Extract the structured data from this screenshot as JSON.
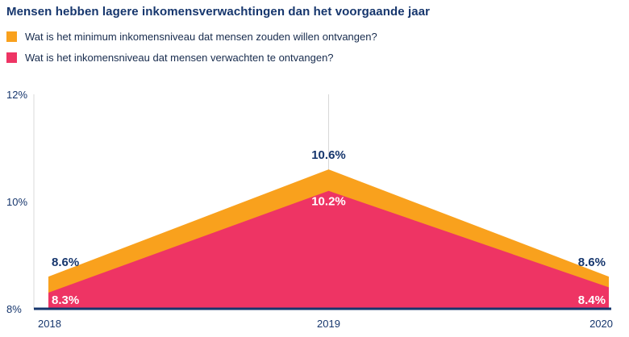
{
  "title": "Mensen hebben lagere inkomensverwachtingen dan het voorgaande jaar",
  "legend": [
    {
      "label": "Wat is het minimum inkomensniveau dat mensen zouden willen ontvangen?",
      "color": "#F9A11D",
      "swatch_icon": "orange-square-icon"
    },
    {
      "label": "Wat is het inkomensniveau dat mensen verwachten te ontvangen?",
      "color": "#EE3464",
      "swatch_icon": "pink-square-icon"
    }
  ],
  "chart_data": {
    "type": "area",
    "title": "Mensen hebben lagere inkomensverwachtingen dan het voorgaande jaar",
    "categories": [
      "2018",
      "2019",
      "2020"
    ],
    "series": [
      {
        "name": "Wat is het minimum inkomensniveau dat mensen zouden willen ontvangen?",
        "values": [
          8.6,
          10.6,
          8.6
        ],
        "labels": [
          "8.6%",
          "10.6%",
          "8.6%"
        ],
        "color": "#F9A11D",
        "label_color": "#16366D"
      },
      {
        "name": "Wat is het inkomensniveau dat mensen verwachten te ontvangen?",
        "values": [
          8.3,
          10.2,
          8.4
        ],
        "labels": [
          "8.3%",
          "10.2%",
          "8.4%"
        ],
        "color": "#EE3464",
        "label_color": "#FFFFFF"
      }
    ],
    "xlabel": "",
    "ylabel": "",
    "ylim": [
      8,
      12
    ],
    "yticks": [
      {
        "value": 8,
        "label": "8%"
      },
      {
        "value": 10,
        "label": "10%"
      },
      {
        "value": 12,
        "label": "12%"
      }
    ],
    "grid": "vertical gridline at 2019, light y-axis line, dark bottom axis",
    "legend_position": "top-left"
  },
  "colors": {
    "title": "#16366D",
    "legend_text": "#172B4D",
    "tick_label": "#16366D",
    "axis_line": "#16366D",
    "gridline": "#D8D8D8",
    "background": "#FFFFFF",
    "orange": "#F9A11D",
    "pink": "#EE3464"
  }
}
